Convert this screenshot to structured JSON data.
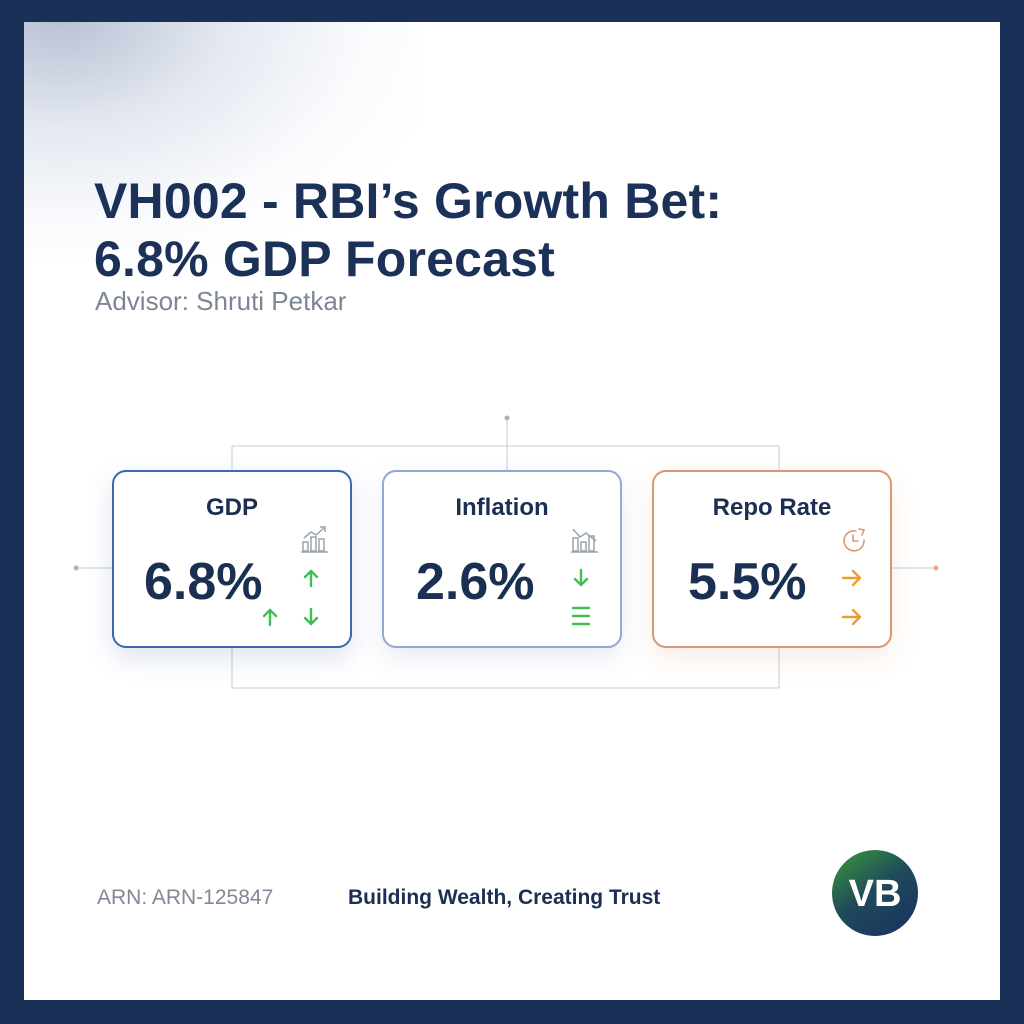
{
  "header": {
    "title_line1": "VH002 - RBI’s Growth Bet:",
    "title_line2": "6.8% GDP Forecast",
    "advisor": "Advisor: Shruti Petkar"
  },
  "cards": [
    {
      "label": "GDP",
      "value": "6.8%",
      "accent": "#3b67b3",
      "trend_color": "#3fbf4f"
    },
    {
      "label": "Inflation",
      "value": "2.6%",
      "accent": "#8fa9d0",
      "trend_color": "#3fbf4f"
    },
    {
      "label": "Repo Rate",
      "value": "5.5%",
      "accent": "#d69a72",
      "trend_color": "#ef9a35"
    }
  ],
  "footer": {
    "arn": "ARN: ARN-125847",
    "tagline": "Building Wealth, Creating Trust",
    "logo_text": "VB"
  },
  "colors": {
    "frame": "#1a3157",
    "title": "#1b3158",
    "logo_gradient_start": "#3a9a3c",
    "logo_gradient_end": "#1c3560"
  }
}
